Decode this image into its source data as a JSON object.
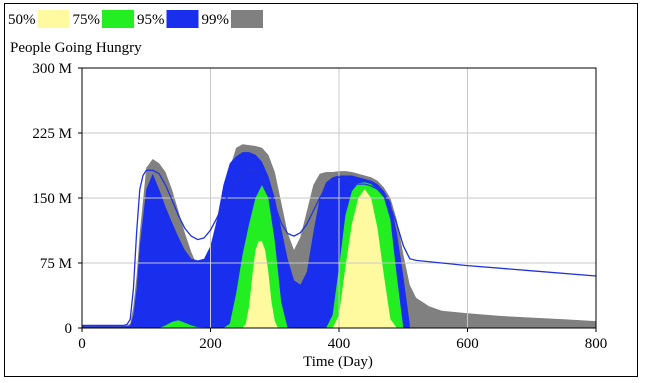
{
  "chart_data": {
    "type": "area",
    "title": "People Going Hungry",
    "xlabel": "Time (Day)",
    "ylabel": "",
    "xlim": [
      0,
      800
    ],
    "ylim": [
      0,
      300
    ],
    "x_ticks": [
      0,
      200,
      400,
      600,
      800
    ],
    "y_ticks": [
      0,
      75,
      150,
      225,
      300
    ],
    "y_tick_labels": [
      "0",
      "75 M",
      "150 M",
      "225 M",
      "300 M"
    ],
    "grid": true,
    "legend_position": "top-left",
    "legend": [
      {
        "label": "50%",
        "color": "#fffaa0"
      },
      {
        "label": "75%",
        "color": "#22ee22"
      },
      {
        "label": "95%",
        "color": "#1a2eee"
      },
      {
        "label": "99%",
        "color": "#808080"
      }
    ],
    "bands": [
      {
        "name": "99%",
        "color": "#808080",
        "x": [
          0,
          65,
          70,
          75,
          80,
          85,
          90,
          100,
          110,
          120,
          130,
          140,
          150,
          160,
          170,
          180,
          190,
          200,
          210,
          220,
          230,
          240,
          250,
          260,
          270,
          280,
          290,
          300,
          310,
          320,
          330,
          340,
          350,
          360,
          370,
          380,
          390,
          400,
          410,
          420,
          430,
          440,
          450,
          460,
          470,
          480,
          490,
          500,
          510,
          520,
          540,
          560,
          600,
          650,
          700,
          750,
          800
        ],
        "upper": [
          3,
          3,
          3,
          5,
          25,
          60,
          110,
          185,
          195,
          190,
          180,
          160,
          135,
          110,
          88,
          70,
          62,
          70,
          95,
          140,
          185,
          208,
          212,
          211,
          210,
          208,
          200,
          180,
          145,
          110,
          90,
          105,
          135,
          165,
          178,
          180,
          180,
          181,
          181,
          180,
          178,
          176,
          174,
          170,
          162,
          150,
          125,
          85,
          50,
          35,
          25,
          20,
          17,
          14,
          12,
          10,
          8
        ],
        "lower": [
          0,
          0,
          0,
          0,
          0,
          0,
          0,
          0,
          0,
          0,
          0,
          0,
          0,
          0,
          0,
          0,
          0,
          0,
          0,
          0,
          0,
          0,
          0,
          0,
          0,
          0,
          0,
          0,
          0,
          0,
          0,
          0,
          0,
          0,
          0,
          0,
          0,
          0,
          0,
          0,
          0,
          0,
          0,
          0,
          0,
          0,
          0,
          0,
          0,
          0,
          0,
          0,
          0,
          0,
          0,
          0,
          0
        ]
      },
      {
        "name": "95%",
        "color": "#1a2eee",
        "x": [
          0,
          65,
          70,
          75,
          80,
          85,
          90,
          100,
          110,
          120,
          130,
          140,
          150,
          160,
          170,
          180,
          190,
          200,
          210,
          220,
          230,
          240,
          250,
          260,
          270,
          280,
          290,
          300,
          310,
          320,
          330,
          340,
          350,
          360,
          370,
          380,
          390,
          400,
          410,
          420,
          430,
          440,
          450,
          460,
          470,
          480,
          490,
          500,
          510
        ],
        "upper": [
          2,
          2,
          2,
          3,
          15,
          45,
          95,
          160,
          178,
          160,
          140,
          122,
          105,
          90,
          80,
          78,
          80,
          95,
          125,
          165,
          190,
          198,
          203,
          203,
          200,
          192,
          175,
          150,
          115,
          80,
          55,
          50,
          65,
          110,
          150,
          168,
          174,
          176,
          176,
          176,
          174,
          172,
          170,
          166,
          158,
          145,
          110,
          60,
          5
        ],
        "lower": [
          0,
          0,
          0,
          0,
          0,
          0,
          0,
          0,
          0,
          0,
          0,
          0,
          0,
          0,
          0,
          0,
          0,
          0,
          0,
          0,
          0,
          0,
          0,
          0,
          0,
          0,
          0,
          0,
          0,
          0,
          0,
          0,
          0,
          0,
          0,
          0,
          0,
          0,
          0,
          0,
          0,
          0,
          0,
          0,
          0,
          0,
          0,
          0,
          0
        ]
      },
      {
        "name": "75%",
        "color": "#22ee22",
        "x": [
          120,
          130,
          140,
          150,
          160,
          170,
          180,
          220,
          230,
          240,
          250,
          260,
          270,
          280,
          290,
          300,
          310,
          320,
          380,
          390,
          400,
          410,
          420,
          430,
          440,
          450,
          460,
          470,
          480,
          490,
          500
        ],
        "upper": [
          0,
          3,
          7,
          9,
          6,
          3,
          1,
          0,
          5,
          40,
          85,
          120,
          150,
          165,
          150,
          100,
          30,
          0,
          0,
          15,
          70,
          130,
          158,
          167,
          168,
          166,
          160,
          150,
          125,
          60,
          0
        ],
        "lower": [
          0,
          0,
          0,
          0,
          0,
          0,
          0,
          0,
          0,
          0,
          0,
          0,
          0,
          0,
          0,
          0,
          0,
          0,
          0,
          0,
          0,
          0,
          0,
          0,
          0,
          0,
          0,
          0,
          0,
          0,
          0
        ]
      },
      {
        "name": "50%",
        "color": "#fffaa0",
        "x": [
          250,
          255,
          260,
          265,
          270,
          275,
          280,
          285,
          290,
          295,
          300,
          305,
          310,
          390,
          400,
          410,
          420,
          430,
          440,
          450,
          460,
          470,
          480,
          490
        ],
        "upper": [
          0,
          5,
          25,
          60,
          90,
          100,
          100,
          90,
          65,
          30,
          8,
          0,
          0,
          0,
          15,
          70,
          120,
          150,
          160,
          150,
          115,
          60,
          10,
          0
        ],
        "lower": [
          0,
          0,
          0,
          0,
          0,
          0,
          0,
          0,
          0,
          0,
          0,
          0,
          0,
          0,
          0,
          0,
          0,
          0,
          0,
          0,
          0,
          0,
          0,
          0
        ]
      }
    ],
    "series": [
      {
        "color": "#2233dd",
        "x": [
          0,
          65,
          70,
          75,
          80,
          85,
          90,
          95,
          100,
          110,
          120,
          130,
          140,
          150,
          160,
          170,
          180,
          190,
          200,
          210,
          220,
          230,
          240,
          250,
          260,
          270,
          280,
          290,
          300,
          310,
          320,
          330,
          340,
          350,
          360,
          370,
          380,
          390,
          400,
          410,
          420,
          430,
          440,
          450,
          460,
          470,
          480,
          490,
          500,
          510,
          520,
          600,
          700,
          800
        ],
        "y": [
          3,
          3,
          4,
          10,
          45,
          110,
          160,
          176,
          182,
          182,
          178,
          165,
          148,
          130,
          115,
          106,
          102,
          104,
          113,
          127,
          143,
          157,
          169,
          178,
          182,
          181,
          174,
          161,
          142,
          121,
          109,
          106,
          110,
          120,
          135,
          150,
          162,
          170,
          174,
          172,
          168,
          166,
          166,
          164,
          160,
          152,
          140,
          120,
          95,
          80,
          78,
          72,
          66,
          60
        ]
      }
    ]
  }
}
